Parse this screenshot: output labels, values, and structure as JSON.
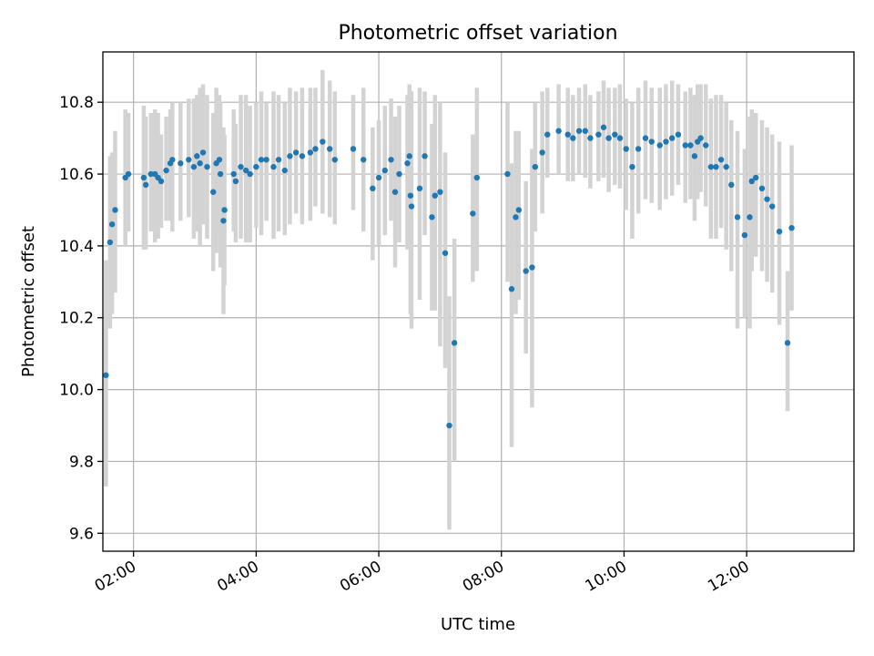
{
  "chart_data": {
    "type": "scatter",
    "title": "Photometric offset variation",
    "xlabel": "UTC time",
    "ylabel": "Photometric offset",
    "x_unit": "UTC time (HH:MM)",
    "xlim": [
      "01:30",
      "13:45"
    ],
    "ylim": [
      9.55,
      10.94
    ],
    "x_ticks": [
      "02:00",
      "04:00",
      "06:00",
      "08:00",
      "10:00",
      "12:00"
    ],
    "y_ticks": [
      "9.6",
      "9.8",
      "10.0",
      "10.2",
      "10.4",
      "10.6",
      "10.8"
    ],
    "grid": true,
    "errorbar_color": "#d3d3d3",
    "marker_color": "#1f77b4",
    "series": [
      {
        "x": [
          "01:33",
          "01:37",
          "01:39",
          "01:42",
          "01:52",
          "01:55",
          "02:10",
          "02:12",
          "02:17",
          "02:21",
          "02:24",
          "02:27",
          "02:32",
          "02:36",
          "02:38",
          "02:46",
          "02:54",
          "02:59",
          "03:02",
          "03:05",
          "03:08",
          "03:12",
          "03:18",
          "03:21",
          "03:24",
          "03:25",
          "03:28",
          "03:29",
          "03:38",
          "03:40",
          "03:45",
          "03:50",
          "03:54",
          "04:00",
          "04:05",
          "04:10",
          "04:17",
          "04:22",
          "04:28",
          "04:33",
          "04:39",
          "04:45",
          "04:53",
          "04:58",
          "05:05",
          "05:12",
          "05:17",
          "05:35",
          "05:45",
          "05:54",
          "06:00",
          "06:06",
          "06:12",
          "06:16",
          "06:20",
          "06:28",
          "06:30",
          "06:31",
          "06:32",
          "06:40",
          "06:45",
          "06:52",
          "06:55",
          "07:00",
          "07:05",
          "07:09",
          "07:14",
          "07:32",
          "07:36",
          "08:06",
          "08:10",
          "08:14",
          "08:17",
          "08:24",
          "08:30",
          "08:33",
          "08:40",
          "08:45",
          "08:56",
          "09:05",
          "09:10",
          "09:16",
          "09:22",
          "09:27",
          "09:35",
          "09:40",
          "09:45",
          "09:51",
          "09:56",
          "10:02",
          "10:08",
          "10:14",
          "10:21",
          "10:27",
          "10:35",
          "10:41",
          "10:47",
          "10:53",
          "11:00",
          "11:05",
          "11:09",
          "11:12",
          "11:15",
          "11:20",
          "11:25",
          "11:30",
          "11:35",
          "11:40",
          "11:45",
          "11:51",
          "11:58",
          "12:03",
          "12:05",
          "12:09",
          "12:15",
          "12:20",
          "12:25",
          "12:32",
          "12:40",
          "12:44"
        ],
        "y": [
          10.04,
          10.41,
          10.46,
          10.5,
          10.59,
          10.6,
          10.59,
          10.57,
          10.6,
          10.6,
          10.59,
          10.58,
          10.61,
          10.63,
          10.64,
          10.63,
          10.64,
          10.62,
          10.65,
          10.63,
          10.66,
          10.62,
          10.55,
          10.63,
          10.64,
          10.6,
          10.47,
          10.5,
          10.6,
          10.58,
          10.62,
          10.61,
          10.6,
          10.62,
          10.64,
          10.64,
          10.62,
          10.64,
          10.61,
          10.65,
          10.66,
          10.65,
          10.66,
          10.67,
          10.69,
          10.67,
          10.64,
          10.67,
          10.64,
          10.56,
          10.59,
          10.61,
          10.64,
          10.55,
          10.6,
          10.63,
          10.65,
          10.54,
          10.51,
          10.56,
          10.65,
          10.48,
          10.54,
          10.55,
          10.38,
          9.9,
          10.13,
          10.49,
          10.59,
          10.6,
          10.28,
          10.48,
          10.5,
          10.33,
          10.34,
          10.62,
          10.66,
          10.71,
          10.72,
          10.71,
          10.7,
          10.72,
          10.72,
          10.7,
          10.71,
          10.73,
          10.7,
          10.71,
          10.7,
          10.67,
          10.62,
          10.67,
          10.7,
          10.69,
          10.68,
          10.69,
          10.7,
          10.71,
          10.68,
          10.68,
          10.65,
          10.69,
          10.7,
          10.68,
          10.62,
          10.62,
          10.64,
          10.62,
          10.57,
          10.48,
          10.43,
          10.48,
          10.58,
          10.59,
          10.56,
          10.53,
          10.51,
          10.44,
          10.13,
          10.45
        ],
        "yerr_low": [
          9.73,
          10.17,
          10.21,
          10.27,
          10.4,
          10.44,
          10.39,
          10.39,
          10.44,
          10.41,
          10.42,
          10.45,
          10.47,
          10.47,
          10.44,
          10.47,
          10.48,
          10.42,
          10.44,
          10.4,
          10.46,
          10.42,
          10.33,
          10.38,
          10.43,
          10.34,
          10.21,
          10.29,
          10.44,
          10.41,
          10.42,
          10.41,
          10.41,
          10.45,
          10.43,
          10.47,
          10.42,
          10.44,
          10.43,
          10.46,
          10.49,
          10.46,
          10.47,
          10.51,
          10.49,
          10.48,
          10.46,
          10.5,
          10.44,
          10.36,
          10.4,
          10.43,
          10.47,
          10.34,
          10.41,
          10.39,
          10.45,
          10.21,
          10.17,
          10.25,
          10.43,
          10.22,
          10.22,
          10.12,
          10.06,
          9.61,
          9.8,
          10.3,
          10.33,
          10.3,
          9.84,
          10.21,
          10.25,
          10.1,
          9.95,
          10.44,
          10.49,
          10.59,
          10.6,
          10.58,
          10.58,
          10.6,
          10.59,
          10.56,
          10.58,
          10.59,
          10.55,
          10.57,
          10.56,
          10.5,
          10.42,
          10.49,
          10.53,
          10.52,
          10.5,
          10.53,
          10.54,
          10.57,
          10.52,
          10.53,
          10.47,
          10.53,
          10.55,
          10.51,
          10.42,
          10.42,
          10.45,
          10.39,
          10.33,
          10.17,
          10.2,
          10.17,
          10.33,
          10.37,
          10.33,
          10.3,
          10.27,
          10.18,
          9.94,
          10.22
        ],
        "yerr_high": [
          10.36,
          10.65,
          10.66,
          10.72,
          10.78,
          10.77,
          10.79,
          10.76,
          10.77,
          10.78,
          10.77,
          10.71,
          10.76,
          10.78,
          10.8,
          10.8,
          10.81,
          10.81,
          10.82,
          10.84,
          10.85,
          10.82,
          10.77,
          10.84,
          10.82,
          10.8,
          10.73,
          10.71,
          10.78,
          10.74,
          10.82,
          10.82,
          10.79,
          10.8,
          10.83,
          10.8,
          10.83,
          10.82,
          10.8,
          10.84,
          10.83,
          10.84,
          10.84,
          10.84,
          10.89,
          10.86,
          10.83,
          10.82,
          10.84,
          10.73,
          10.75,
          10.79,
          10.81,
          10.76,
          10.79,
          10.82,
          10.85,
          10.83,
          10.83,
          10.84,
          10.83,
          10.74,
          10.82,
          10.8,
          10.66,
          10.26,
          10.42,
          10.71,
          10.84,
          10.8,
          10.63,
          10.72,
          10.72,
          10.58,
          10.67,
          10.8,
          10.83,
          10.84,
          10.85,
          10.84,
          10.82,
          10.84,
          10.85,
          10.82,
          10.83,
          10.86,
          10.84,
          10.84,
          10.85,
          10.81,
          10.8,
          10.84,
          10.86,
          10.84,
          10.84,
          10.85,
          10.86,
          10.85,
          10.83,
          10.84,
          10.82,
          10.85,
          10.85,
          10.85,
          10.81,
          10.82,
          10.82,
          10.8,
          10.75,
          10.72,
          10.67,
          10.76,
          10.78,
          10.77,
          10.75,
          10.73,
          10.71,
          10.69,
          10.33,
          10.68
        ]
      }
    ]
  }
}
